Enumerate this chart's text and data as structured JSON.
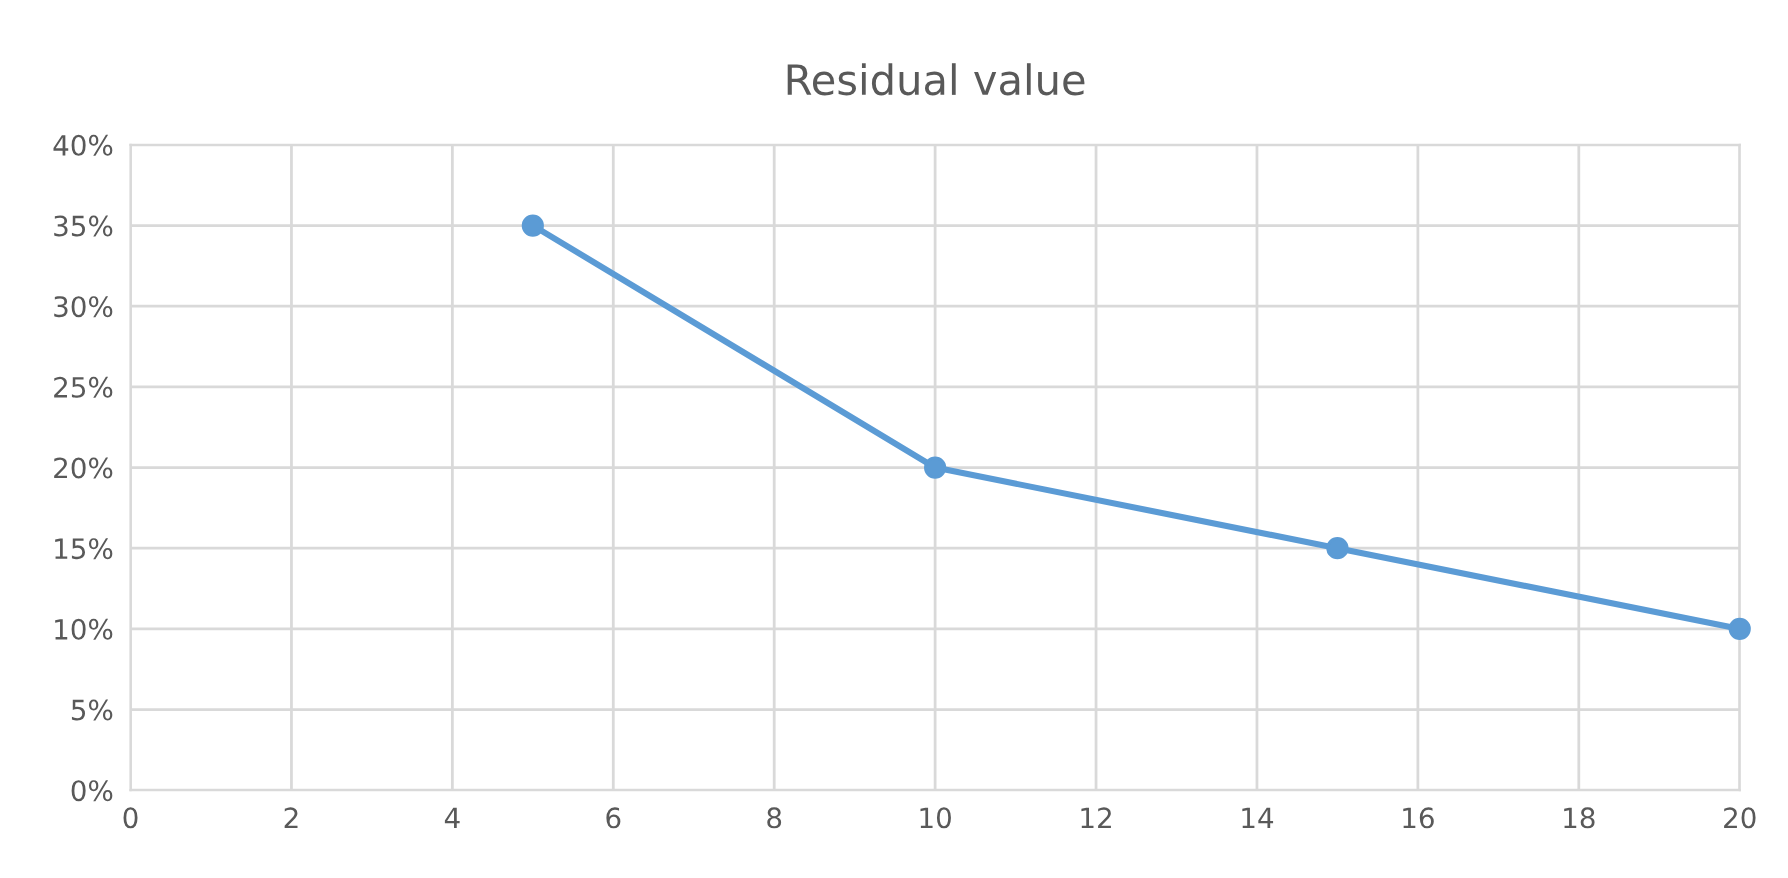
{
  "chart_data": {
    "type": "line",
    "title": "Residual value",
    "x": [
      5,
      10,
      15,
      20
    ],
    "series": [
      {
        "color": "#5b9bd5",
        "values": [
          35,
          20,
          15,
          10
        ]
      }
    ],
    "xlim": [
      0,
      20
    ],
    "xticks": [
      0,
      2,
      4,
      6,
      8,
      10,
      12,
      14,
      16,
      18,
      20
    ],
    "ylim": [
      0,
      40
    ],
    "yticks": [
      {
        "value": 0,
        "label": "0%"
      },
      {
        "value": 5,
        "label": "5%"
      },
      {
        "value": 10,
        "label": "10%"
      },
      {
        "value": 15,
        "label": "15%"
      },
      {
        "value": 20,
        "label": "20%"
      },
      {
        "value": 25,
        "label": "25%"
      },
      {
        "value": 30,
        "label": "30%"
      },
      {
        "value": 35,
        "label": "35%"
      },
      {
        "value": 40,
        "label": "40%"
      }
    ],
    "grid": true,
    "marker": "circle",
    "line_style": "solid"
  }
}
